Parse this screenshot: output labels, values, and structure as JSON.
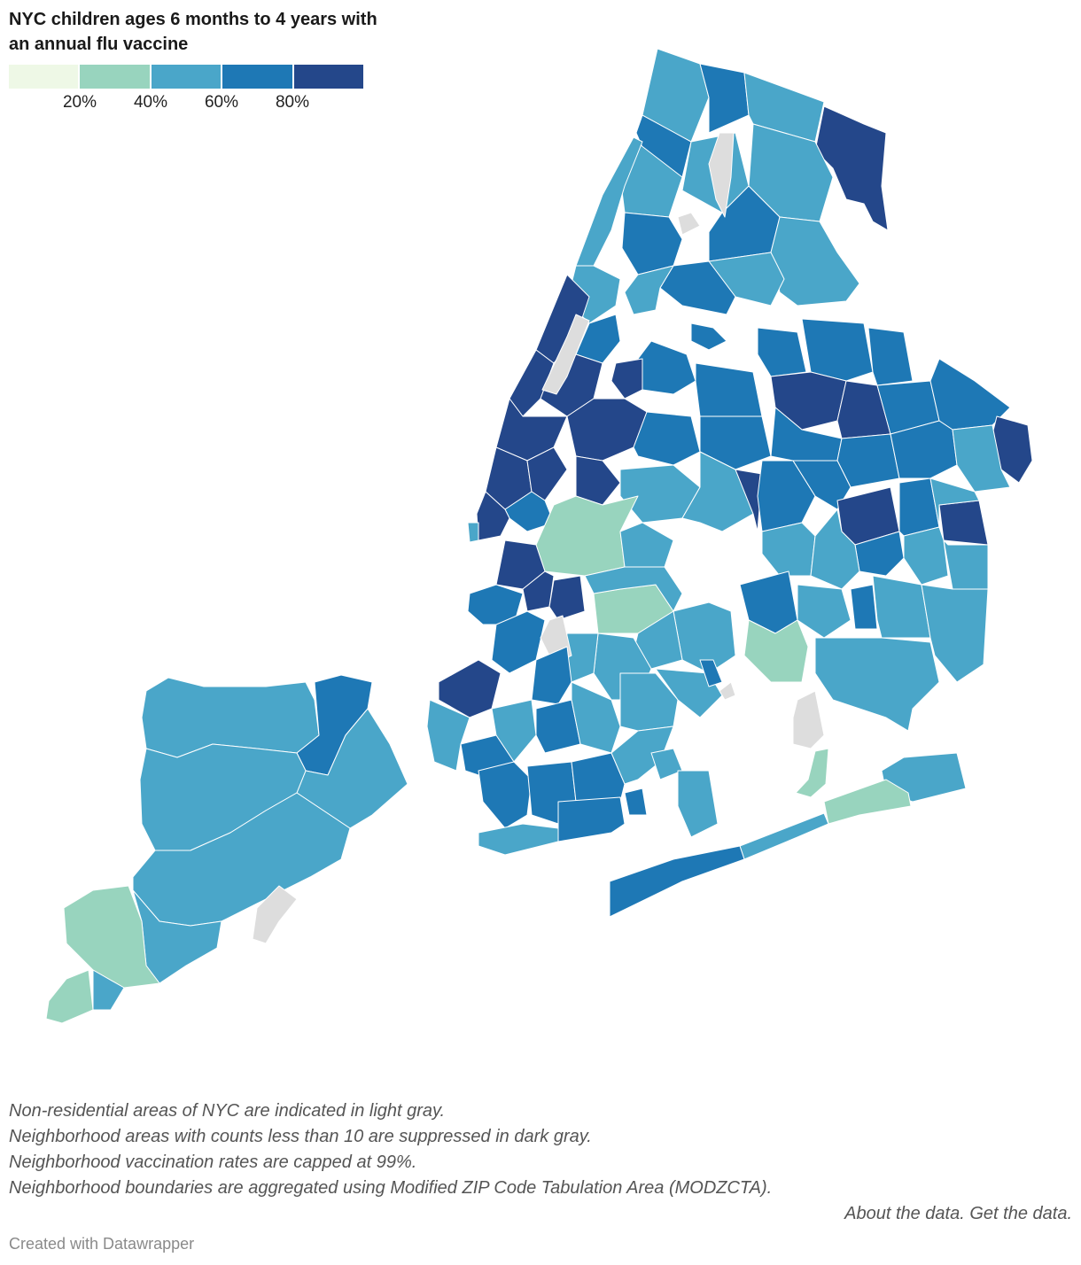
{
  "title": "NYC children ages 6 months to 4 years with an annual flu vaccine",
  "legend": {
    "bins": [
      {
        "color": "#eef8e6"
      },
      {
        "color": "#98d4be"
      },
      {
        "color": "#4aa6c9"
      },
      {
        "color": "#1e78b5"
      },
      {
        "color": "#24478a"
      }
    ],
    "ticks": [
      {
        "label": "20%",
        "value": 20
      },
      {
        "label": "40%",
        "value": 40
      },
      {
        "label": "60%",
        "value": 60
      },
      {
        "label": "80%",
        "value": 80
      }
    ],
    "min": 0,
    "max": 100
  },
  "colors": {
    "non_residential": "#dddddd",
    "suppressed": "#aaaaaa"
  },
  "notes": [
    "Non-residential areas of NYC are indicated in light gray.",
    "Neighborhood areas with counts less than 10 are suppressed in dark gray.",
    "Neighborhood vaccination rates are capped at 99%.",
    "Neighborhood boundaries are aggregated using Modified ZIP Code Tabulation Area (MODZCTA)."
  ],
  "links": {
    "about": "About the data.",
    "get": "Get the data."
  },
  "credit": "Created with Datawrapper"
}
